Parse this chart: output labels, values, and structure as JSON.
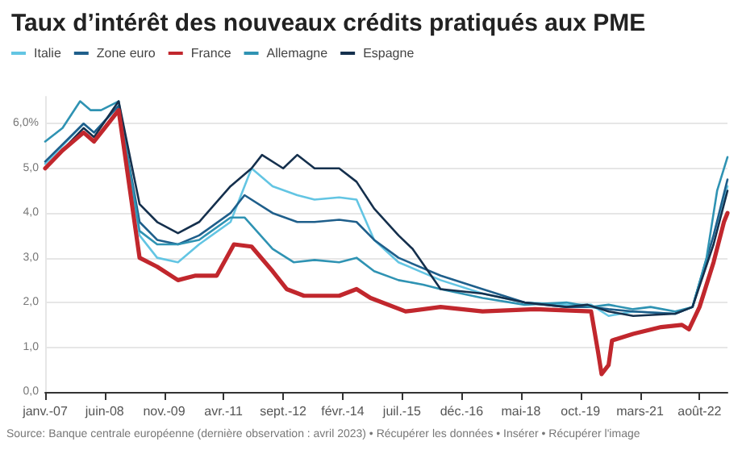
{
  "chart_data": {
    "type": "line",
    "title": "Taux d’intérêt des nouveaux crédits pratiqués aux PME",
    "annotations": [
      "Source: Banque centrale européenne (dernière observation : avril 2023) • Récupérer les données • Insérer • Récupérer l'image"
    ],
    "xlim": [
      "2007-01",
      "2023-04"
    ],
    "xticks": [
      {
        "value": "2007-01",
        "label": "janv.-07"
      },
      {
        "value": "2008-06",
        "label": "juin-08"
      },
      {
        "value": "2009-11",
        "label": "nov.-09"
      },
      {
        "value": "2011-04",
        "label": "avr.-11"
      },
      {
        "value": "2012-09",
        "label": "sept.-12"
      },
      {
        "value": "2014-02",
        "label": "févr.-14"
      },
      {
        "value": "2015-07",
        "label": "juil.-15"
      },
      {
        "value": "2016-12",
        "label": "déc.-16"
      },
      {
        "value": "2018-05",
        "label": "mai-18"
      },
      {
        "value": "2019-10",
        "label": "oct.-19"
      },
      {
        "value": "2021-03",
        "label": "mars-21"
      },
      {
        "value": "2022-08",
        "label": "août-22"
      }
    ],
    "ylim": [
      0,
      6.6
    ],
    "yticks": [
      {
        "value": 0,
        "label": "0,0"
      },
      {
        "value": 1,
        "label": "1,0"
      },
      {
        "value": 2,
        "label": "2,0"
      },
      {
        "value": 3,
        "label": "3,0"
      },
      {
        "value": 4,
        "label": "4,0"
      },
      {
        "value": 5,
        "label": "5,0"
      },
      {
        "value": 6,
        "label": "6,0%"
      }
    ],
    "grid": "y",
    "legend": "top left",
    "marker": "none",
    "line_style": "solid",
    "series": [
      {
        "name": "Italie",
        "color": "#63c5e3",
        "x": [
          "2007-01",
          "2007-12",
          "2008-03",
          "2008-10",
          "2009-04",
          "2009-09",
          "2010-03",
          "2010-09",
          "2011-06",
          "2011-12",
          "2012-06",
          "2013-01",
          "2013-06",
          "2014-01",
          "2014-06",
          "2014-11",
          "2015-06",
          "2016-06",
          "2017-06",
          "2018-06",
          "2019-06",
          "2020-01",
          "2020-06",
          "2021-01",
          "2022-01",
          "2022-06",
          "2022-12",
          "2023-04"
        ],
        "values": [
          5.1,
          6.0,
          5.8,
          6.4,
          3.5,
          3.0,
          2.9,
          3.3,
          3.8,
          5.0,
          4.6,
          4.4,
          4.3,
          4.35,
          4.3,
          3.4,
          2.9,
          2.5,
          2.2,
          2.0,
          1.95,
          1.95,
          1.7,
          1.8,
          1.75,
          1.9,
          3.5,
          4.6
        ]
      },
      {
        "name": "Zone euro",
        "color": "#1f5f8b",
        "x": [
          "2007-01",
          "2007-12",
          "2008-03",
          "2008-10",
          "2009-04",
          "2009-09",
          "2010-03",
          "2010-09",
          "2011-06",
          "2011-10",
          "2012-06",
          "2013-01",
          "2013-06",
          "2014-01",
          "2014-06",
          "2014-11",
          "2015-06",
          "2016-06",
          "2017-06",
          "2018-06",
          "2019-06",
          "2020-01",
          "2020-06",
          "2021-01",
          "2022-01",
          "2022-06",
          "2022-12",
          "2023-04"
        ],
        "values": [
          5.15,
          6.0,
          5.8,
          6.4,
          3.8,
          3.4,
          3.3,
          3.5,
          4.0,
          4.4,
          4.0,
          3.8,
          3.8,
          3.85,
          3.8,
          3.4,
          3.0,
          2.6,
          2.3,
          2.0,
          1.9,
          1.9,
          1.85,
          1.8,
          1.75,
          1.9,
          3.5,
          4.75
        ]
      },
      {
        "name": "France",
        "color": "#c1272d",
        "x": [
          "2007-01",
          "2007-06",
          "2007-12",
          "2008-03",
          "2008-06",
          "2008-10",
          "2009-04",
          "2009-09",
          "2010-03",
          "2010-08",
          "2011-02",
          "2011-07",
          "2011-12",
          "2012-06",
          "2012-10",
          "2013-03",
          "2014-01",
          "2014-06",
          "2014-10",
          "2015-08",
          "2016-06",
          "2017-06",
          "2018-09",
          "2020-01",
          "2020-03",
          "2020-04",
          "2020-06",
          "2020-07",
          "2021-01",
          "2021-09",
          "2022-03",
          "2022-05",
          "2022-08",
          "2022-12",
          "2023-03",
          "2023-04"
        ],
        "values": [
          5.0,
          5.4,
          5.8,
          5.6,
          5.9,
          6.3,
          3.0,
          2.8,
          2.5,
          2.6,
          2.6,
          3.3,
          3.25,
          2.7,
          2.3,
          2.15,
          2.15,
          2.3,
          2.1,
          1.8,
          1.9,
          1.8,
          1.85,
          1.8,
          0.9,
          0.4,
          0.6,
          1.15,
          1.3,
          1.45,
          1.5,
          1.4,
          1.9,
          2.9,
          3.8,
          4.0
        ]
      },
      {
        "name": "Allemagne",
        "color": "#2f93b3",
        "x": [
          "2007-01",
          "2007-06",
          "2007-11",
          "2008-02",
          "2008-05",
          "2008-10",
          "2009-04",
          "2009-09",
          "2010-03",
          "2010-09",
          "2011-06",
          "2011-10",
          "2012-06",
          "2012-12",
          "2013-06",
          "2014-01",
          "2014-06",
          "2014-11",
          "2015-06",
          "2016-01",
          "2016-06",
          "2017-06",
          "2018-06",
          "2019-06",
          "2020-01",
          "2020-06",
          "2021-01",
          "2021-06",
          "2022-01",
          "2022-06",
          "2022-10",
          "2023-01",
          "2023-04"
        ],
        "values": [
          5.6,
          5.9,
          6.5,
          6.3,
          6.3,
          6.5,
          3.6,
          3.3,
          3.3,
          3.4,
          3.9,
          3.9,
          3.2,
          2.9,
          2.95,
          2.9,
          3.0,
          2.7,
          2.5,
          2.4,
          2.3,
          2.1,
          1.95,
          2.0,
          1.9,
          1.95,
          1.85,
          1.9,
          1.8,
          1.9,
          3.0,
          4.5,
          5.25
        ]
      },
      {
        "name": "Espagne",
        "color": "#15304d",
        "x": [
          "2007-01",
          "2007-12",
          "2008-03",
          "2008-10",
          "2009-04",
          "2009-09",
          "2010-03",
          "2010-09",
          "2011-06",
          "2011-12",
          "2012-03",
          "2012-09",
          "2013-01",
          "2013-06",
          "2014-01",
          "2014-06",
          "2014-11",
          "2015-06",
          "2015-10",
          "2016-06",
          "2017-06",
          "2018-06",
          "2019-06",
          "2019-12",
          "2020-06",
          "2021-01",
          "2022-01",
          "2022-06",
          "2022-12",
          "2023-04"
        ],
        "values": [
          5.0,
          5.9,
          5.7,
          6.5,
          4.2,
          3.8,
          3.55,
          3.8,
          4.6,
          5.0,
          5.3,
          5.0,
          5.3,
          5.0,
          5.0,
          4.7,
          4.1,
          3.5,
          3.2,
          2.3,
          2.2,
          2.0,
          1.9,
          1.95,
          1.8,
          1.7,
          1.75,
          1.9,
          3.3,
          4.5
        ]
      }
    ]
  }
}
